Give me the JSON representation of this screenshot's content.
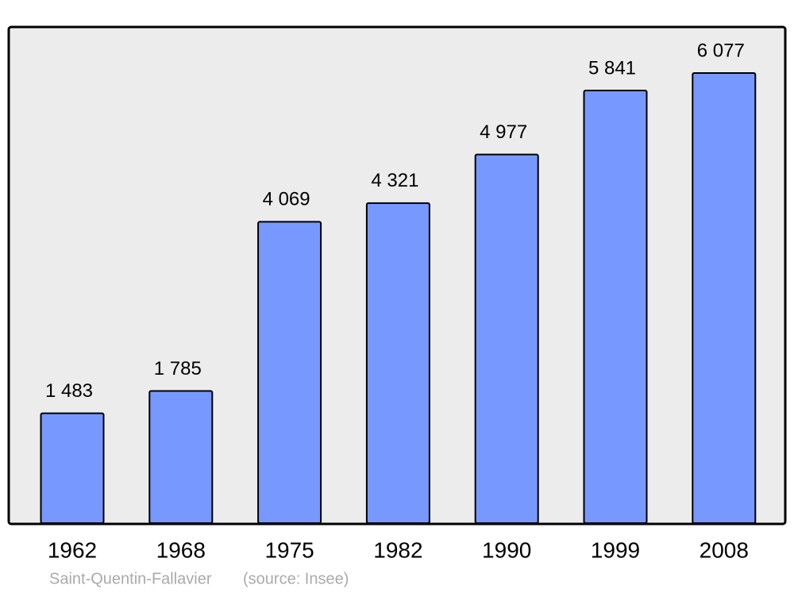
{
  "chart_data": {
    "type": "bar",
    "categories": [
      "1962",
      "1968",
      "1975",
      "1982",
      "1990",
      "1999",
      "2008"
    ],
    "values": [
      1483,
      1785,
      4069,
      4321,
      4977,
      5841,
      6077
    ],
    "value_labels": [
      "1 483",
      "1 785",
      "4 069",
      "4 321",
      "4 977",
      "5 841",
      "6 077"
    ],
    "color": "#7799ff",
    "caption": "Saint-Quentin-Fallavier",
    "source": "(source: Insee)"
  }
}
